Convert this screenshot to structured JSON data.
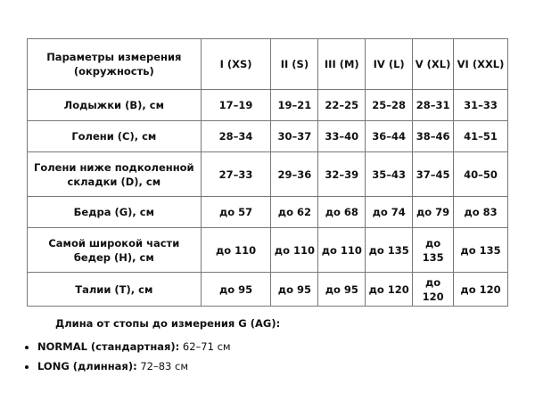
{
  "table": {
    "header": [
      "Параметры измерения (окружность)",
      "I (XS)",
      "II (S)",
      "III (M)",
      "IV (L)",
      "V (XL)",
      "VI (XXL)"
    ],
    "rows": [
      [
        "Лодыжки (B), см",
        "17–19",
        "19–21",
        "22–25",
        "25–28",
        "28–31",
        "31–33"
      ],
      [
        "Голени (C), см",
        "28–34",
        "30–37",
        "33–40",
        "36–44",
        "38–46",
        "41–51"
      ],
      [
        "Голени ниже подколенной складки (D), см",
        "27–33",
        "29–36",
        "32–39",
        "35–43",
        "37–45",
        "40–50"
      ],
      [
        "Бедра (G), см",
        "до 57",
        "до 62",
        "до 68",
        "до 74",
        "до 79",
        "до 83"
      ],
      [
        "Самой широкой части бедер (H), см",
        "до 110",
        "до 110",
        "до 110",
        "до 135",
        "до 135",
        "до 135"
      ],
      [
        "Талии (T), см",
        "до 95",
        "до 95",
        "до 95",
        "до 120",
        "до 120",
        "до 120"
      ]
    ]
  },
  "note": "Длина от стопы до измерения G (AG):",
  "list": [
    {
      "label": "NORMAL (стандартная):",
      "value": " 62–71 см"
    },
    {
      "label": "LONG (длинная):",
      "value": " 72–83 см"
    }
  ]
}
